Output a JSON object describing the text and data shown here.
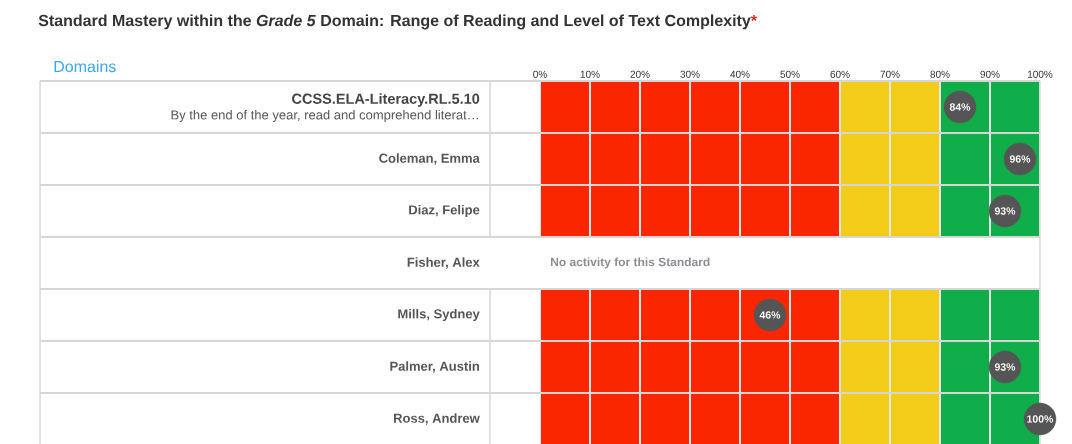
{
  "chart_data": {
    "type": "scatter",
    "orientation": "horizontal",
    "title": "Standard Mastery within the *Grade 5* Domain: Range of Reading and Level of Text Complexity",
    "categories": [
      "CCSS.ELA-Literacy.RL.5.10",
      "Coleman, Emma",
      "Diaz, Felipe",
      "Fisher, Alex",
      "Mills, Sydney",
      "Palmer, Austin",
      "Ross, Andrew"
    ],
    "series": [
      {
        "color": "#555555",
        "values": [
          84,
          96,
          93,
          null,
          46,
          93,
          100
        ],
        "value_labels": [
          "84%",
          "96%",
          "93%",
          null,
          "46%",
          "93%",
          "100%"
        ]
      }
    ],
    "xlim": [
      0,
      100
    ],
    "xticks": [
      {
        "value": 0,
        "label": "0%"
      },
      {
        "value": 10,
        "label": "10%"
      },
      {
        "value": 20,
        "label": "20%"
      },
      {
        "value": 30,
        "label": "30%"
      },
      {
        "value": 40,
        "label": "40%"
      },
      {
        "value": 50,
        "label": "50%"
      },
      {
        "value": 60,
        "label": "60%"
      },
      {
        "value": 70,
        "label": "70%"
      },
      {
        "value": 80,
        "label": "80%"
      },
      {
        "value": 90,
        "label": "90%"
      },
      {
        "value": 100,
        "label": "100%"
      }
    ],
    "bands": [
      {
        "axis": "x",
        "from": 0,
        "to": 60,
        "color": "#fa2600"
      },
      {
        "axis": "x",
        "from": 60,
        "to": 80,
        "color": "#f2cc19"
      },
      {
        "axis": "x",
        "from": 80,
        "to": 100,
        "color": "#10ad4b"
      }
    ],
    "grid": "x",
    "marker": "circle",
    "annotations": [
      "*",
      "Domains",
      "By the end of the year, read and comprehend literat…",
      "No activity for this Standard"
    ]
  }
}
